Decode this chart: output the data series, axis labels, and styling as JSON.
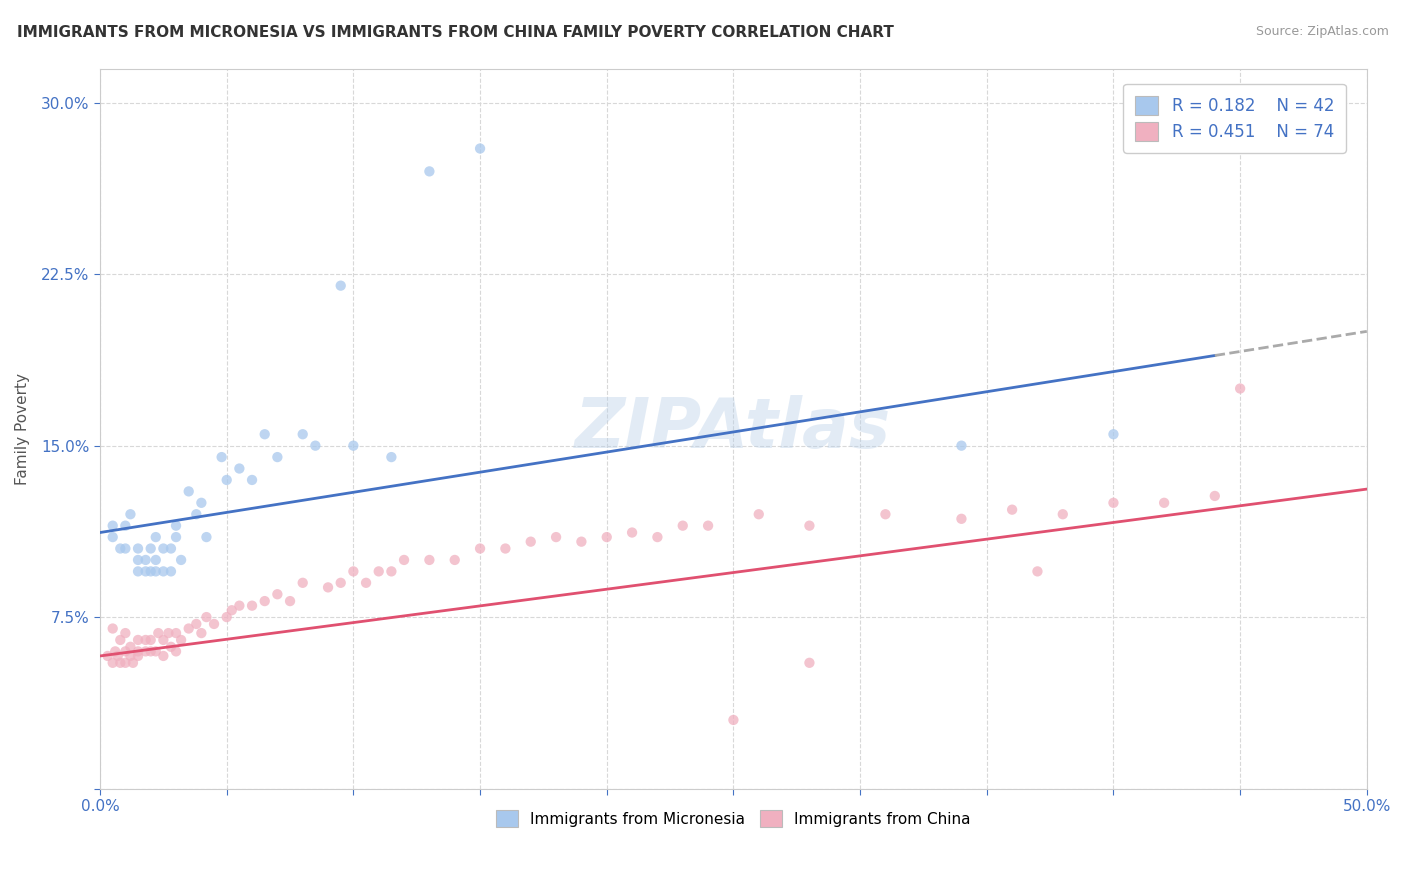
{
  "title": "IMMIGRANTS FROM MICRONESIA VS IMMIGRANTS FROM CHINA FAMILY POVERTY CORRELATION CHART",
  "source_text": "Source: ZipAtlas.com",
  "ylabel": "Family Poverty",
  "xlim": [
    0.0,
    0.5
  ],
  "ylim": [
    0.0,
    0.315
  ],
  "x_ticks": [
    0.0,
    0.05,
    0.1,
    0.15,
    0.2,
    0.25,
    0.3,
    0.35,
    0.4,
    0.45,
    0.5
  ],
  "x_tick_labels": [
    "0.0%",
    "",
    "",
    "",
    "",
    "",
    "",
    "",
    "",
    "",
    "50.0%"
  ],
  "y_ticks": [
    0.0,
    0.075,
    0.15,
    0.225,
    0.3
  ],
  "y_tick_labels": [
    "",
    "7.5%",
    "15.0%",
    "22.5%",
    "30.0%"
  ],
  "grid_color": "#d8d8d8",
  "background_color": "#ffffff",
  "watermark": "ZIPAtlas",
  "legend_R1": "R = 0.182",
  "legend_N1": "N = 42",
  "legend_R2": "R = 0.451",
  "legend_N2": "N = 74",
  "color_micronesia": "#a8c8ed",
  "color_china": "#f0b0c0",
  "line_color_micronesia": "#4472c4",
  "line_color_china": "#e05070",
  "scatter_micronesia_x": [
    0.005,
    0.005,
    0.008,
    0.01,
    0.01,
    0.012,
    0.015,
    0.015,
    0.015,
    0.018,
    0.018,
    0.02,
    0.02,
    0.022,
    0.022,
    0.022,
    0.025,
    0.025,
    0.028,
    0.028,
    0.03,
    0.03,
    0.032,
    0.035,
    0.038,
    0.04,
    0.042,
    0.048,
    0.05,
    0.055,
    0.06,
    0.065,
    0.07,
    0.08,
    0.085,
    0.095,
    0.1,
    0.115,
    0.13,
    0.15,
    0.34,
    0.4
  ],
  "scatter_micronesia_y": [
    0.11,
    0.115,
    0.105,
    0.105,
    0.115,
    0.12,
    0.095,
    0.1,
    0.105,
    0.095,
    0.1,
    0.095,
    0.105,
    0.095,
    0.1,
    0.11,
    0.095,
    0.105,
    0.095,
    0.105,
    0.11,
    0.115,
    0.1,
    0.13,
    0.12,
    0.125,
    0.11,
    0.145,
    0.135,
    0.14,
    0.135,
    0.155,
    0.145,
    0.155,
    0.15,
    0.22,
    0.15,
    0.145,
    0.27,
    0.28,
    0.15,
    0.155
  ],
  "scatter_china_x": [
    0.003,
    0.005,
    0.005,
    0.006,
    0.007,
    0.008,
    0.008,
    0.01,
    0.01,
    0.01,
    0.012,
    0.012,
    0.013,
    0.015,
    0.015,
    0.015,
    0.018,
    0.018,
    0.02,
    0.02,
    0.022,
    0.023,
    0.025,
    0.025,
    0.027,
    0.028,
    0.03,
    0.03,
    0.032,
    0.035,
    0.038,
    0.04,
    0.042,
    0.045,
    0.05,
    0.052,
    0.055,
    0.06,
    0.065,
    0.07,
    0.075,
    0.08,
    0.09,
    0.095,
    0.1,
    0.105,
    0.11,
    0.115,
    0.12,
    0.13,
    0.14,
    0.15,
    0.16,
    0.17,
    0.18,
    0.19,
    0.2,
    0.21,
    0.22,
    0.23,
    0.24,
    0.26,
    0.28,
    0.31,
    0.34,
    0.36,
    0.38,
    0.4,
    0.42,
    0.44,
    0.28,
    0.37,
    0.45,
    0.25
  ],
  "scatter_china_y": [
    0.058,
    0.055,
    0.07,
    0.06,
    0.058,
    0.055,
    0.065,
    0.055,
    0.06,
    0.068,
    0.058,
    0.062,
    0.055,
    0.058,
    0.065,
    0.06,
    0.06,
    0.065,
    0.06,
    0.065,
    0.06,
    0.068,
    0.058,
    0.065,
    0.068,
    0.062,
    0.06,
    0.068,
    0.065,
    0.07,
    0.072,
    0.068,
    0.075,
    0.072,
    0.075,
    0.078,
    0.08,
    0.08,
    0.082,
    0.085,
    0.082,
    0.09,
    0.088,
    0.09,
    0.095,
    0.09,
    0.095,
    0.095,
    0.1,
    0.1,
    0.1,
    0.105,
    0.105,
    0.108,
    0.11,
    0.108,
    0.11,
    0.112,
    0.11,
    0.115,
    0.115,
    0.12,
    0.115,
    0.12,
    0.118,
    0.122,
    0.12,
    0.125,
    0.125,
    0.128,
    0.055,
    0.095,
    0.175,
    0.03
  ]
}
